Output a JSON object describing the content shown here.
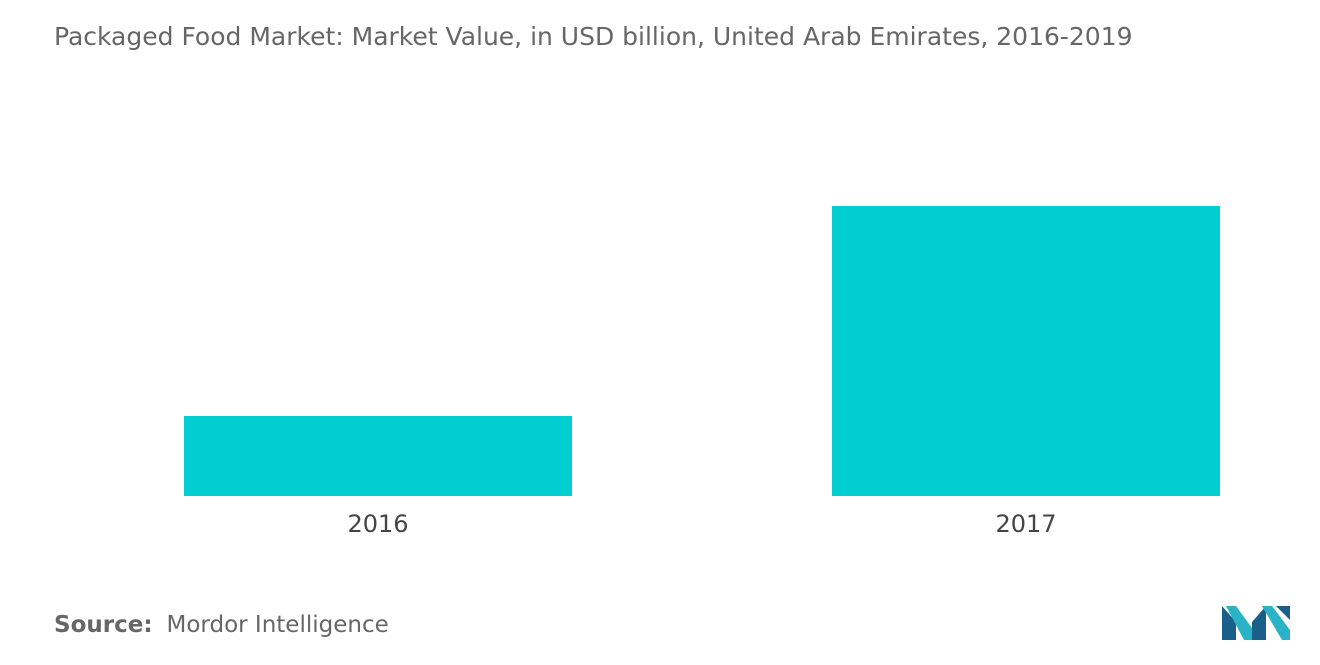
{
  "chart_data": {
    "type": "bar",
    "title": "Packaged Food Market: Market Value, in USD billion, United Arab Emirates, 2016-2019",
    "categories": [
      "2016",
      "2017"
    ],
    "values": [
      8,
      29
    ],
    "ylim": [
      0,
      40
    ],
    "bar_color": "#00CED1",
    "legend": "none",
    "grid": false
  },
  "source": {
    "label": "Source:",
    "value": "Mordor Intelligence"
  },
  "logo": {
    "icon": "mordor-intelligence-logo-icon",
    "colors": [
      "#1a5f8a",
      "#2ab3c6"
    ]
  }
}
